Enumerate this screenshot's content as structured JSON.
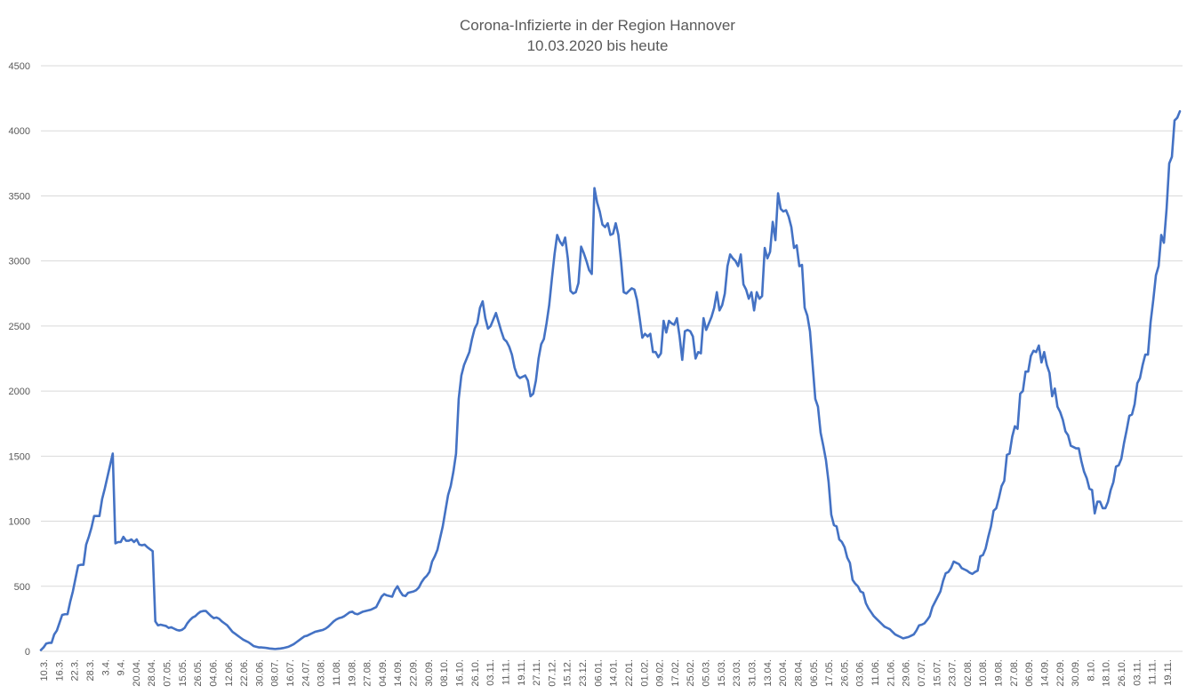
{
  "chart_data": {
    "type": "line",
    "title": "Corona-Infizierte in der Region Hannover",
    "subtitle": "10.03.2020 bis heute",
    "xlabel": "",
    "ylabel": "",
    "ylim": [
      0,
      4500
    ],
    "y_ticks": [
      0,
      500,
      1000,
      1500,
      2000,
      2500,
      3000,
      3500,
      4000,
      4500
    ],
    "grid": true,
    "legend": "none",
    "color": "#4472c4",
    "x_tick_labels": [
      "10.3.",
      "16.3.",
      "22.3.",
      "28.3.",
      "3.4.",
      "9.4.",
      "20.04.",
      "28.04.",
      "07.05.",
      "15.05.",
      "26.05.",
      "04.06.",
      "12.06.",
      "22.06.",
      "30.06.",
      "08.07.",
      "16.07.",
      "24.07.",
      "03.08.",
      "11.08.",
      "19.08.",
      "27.08.",
      "04.09.",
      "14.09.",
      "22.09.",
      "30.09.",
      "08.10.",
      "16.10.",
      "26.10.",
      "03.11.",
      "11.11.",
      "19.11.",
      "27.11.",
      "07.12.",
      "15.12.",
      "23.12.",
      "06.01.",
      "14.01.",
      "22.01.",
      "01.02.",
      "09.02.",
      "17.02.",
      "25.02.",
      "05.03.",
      "15.03.",
      "23.03.",
      "31.03.",
      "13.04.",
      "20.04.",
      "28.04.",
      "06.05.",
      "17.05.",
      "26.05.",
      "03.06.",
      "11.06.",
      "21.06.",
      "29.06.",
      "07.07.",
      "15.07.",
      "23.07.",
      "02.08.",
      "10.08.",
      "19.08.",
      "27.08.",
      "06.09.",
      "14.09.",
      "22.09.",
      "30.09.",
      "8.10.",
      "18.10.",
      "26.10.",
      "03.11.",
      "11.11.",
      "19.11."
    ],
    "values": [
      10,
      30,
      60,
      65,
      65,
      130,
      160,
      220,
      280,
      285,
      285,
      380,
      460,
      560,
      660,
      665,
      665,
      820,
      880,
      950,
      1040,
      1040,
      1040,
      1170,
      1250,
      1340,
      1430,
      1520,
      830,
      840,
      840,
      880,
      850,
      850,
      860,
      840,
      860,
      820,
      815,
      820,
      800,
      785,
      770,
      230,
      200,
      205,
      200,
      195,
      180,
      185,
      175,
      165,
      160,
      165,
      180,
      215,
      240,
      260,
      270,
      290,
      305,
      310,
      310,
      290,
      270,
      255,
      260,
      250,
      230,
      215,
      200,
      175,
      150,
      135,
      120,
      105,
      90,
      80,
      70,
      55,
      40,
      35,
      30,
      30,
      28,
      25,
      22,
      20,
      18,
      20,
      22,
      25,
      30,
      35,
      45,
      55,
      70,
      85,
      100,
      115,
      120,
      130,
      140,
      150,
      155,
      160,
      165,
      175,
      190,
      210,
      230,
      245,
      255,
      260,
      270,
      285,
      300,
      305,
      290,
      285,
      295,
      305,
      310,
      315,
      320,
      330,
      340,
      380,
      420,
      440,
      430,
      425,
      420,
      470,
      500,
      460,
      430,
      425,
      450,
      455,
      460,
      470,
      490,
      530,
      560,
      580,
      610,
      690,
      730,
      780,
      870,
      960,
      1080,
      1200,
      1270,
      1380,
      1520,
      1940,
      2120,
      2200,
      2250,
      2300,
      2400,
      2480,
      2520,
      2640,
      2690,
      2560,
      2480,
      2500,
      2550,
      2600,
      2530,
      2460,
      2400,
      2380,
      2340,
      2280,
      2180,
      2120,
      2100,
      2110,
      2120,
      2080,
      1960,
      1980,
      2080,
      2250,
      2360,
      2400,
      2520,
      2660,
      2860,
      3050,
      3200,
      3150,
      3120,
      3180,
      3020,
      2770,
      2750,
      2760,
      2830,
      3110,
      3060,
      3000,
      2930,
      2900,
      3560,
      3450,
      3380,
      3280,
      3260,
      3290,
      3200,
      3210,
      3290,
      3200,
      3000,
      2760,
      2750,
      2770,
      2790,
      2780,
      2700,
      2560,
      2410,
      2440,
      2420,
      2440,
      2300,
      2300,
      2260,
      2290,
      2540,
      2450,
      2540,
      2520,
      2510,
      2560,
      2420,
      2240,
      2460,
      2470,
      2460,
      2420,
      2250,
      2300,
      2290,
      2560,
      2470,
      2520,
      2570,
      2640,
      2760,
      2620,
      2660,
      2750,
      2960,
      3050,
      3020,
      3000,
      2960,
      3050,
      2820,
      2780,
      2710,
      2760,
      2620,
      2760,
      2710,
      2730,
      3100,
      3020,
      3070,
      3300,
      3160,
      3520,
      3400,
      3380,
      3390,
      3340,
      3260,
      3100,
      3120,
      2960,
      2970,
      2640,
      2580,
      2460,
      2200,
      1940,
      1880,
      1680,
      1580,
      1470,
      1300,
      1050,
      970,
      960,
      860,
      840,
      800,
      720,
      680,
      550,
      520,
      500,
      460,
      450,
      370,
      330,
      300,
      270,
      250,
      230,
      210,
      190,
      180,
      170,
      150,
      130,
      120,
      110,
      100,
      105,
      110,
      120,
      130,
      160,
      200,
      205,
      215,
      240,
      270,
      340,
      380,
      420,
      460,
      540,
      600,
      610,
      640,
      690,
      680,
      670,
      640,
      630,
      620,
      605,
      595,
      610,
      620,
      730,
      740,
      790,
      880,
      960,
      1080,
      1100,
      1180,
      1270,
      1310,
      1510,
      1520,
      1650,
      1730,
      1710,
      1980,
      2000,
      2150,
      2150,
      2270,
      2310,
      2300,
      2350,
      2220,
      2300,
      2200,
      2140,
      1960,
      2020,
      1880,
      1840,
      1780,
      1690,
      1660,
      1580,
      1570,
      1560,
      1560,
      1460,
      1380,
      1330,
      1250,
      1240,
      1060,
      1150,
      1150,
      1100,
      1100,
      1150,
      1240,
      1300,
      1420,
      1430,
      1480,
      1600,
      1700,
      1810,
      1820,
      1900,
      2060,
      2100,
      2200,
      2280,
      2280,
      2530,
      2700,
      2890,
      2960,
      3200,
      3140,
      3400,
      3750,
      3800,
      4080,
      4100,
      4150
    ]
  }
}
